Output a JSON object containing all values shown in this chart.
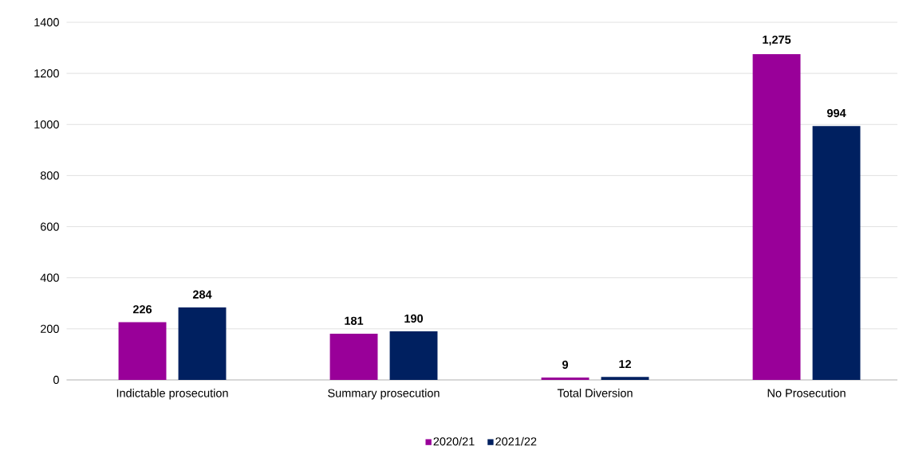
{
  "chart_data": {
    "type": "bar",
    "categories": [
      "Indictable prosecution",
      "Summary prosecution",
      "Total Diversion",
      "No Prosecution"
    ],
    "series": [
      {
        "name": "2020/21",
        "color": "#990099",
        "values": [
          226,
          181,
          9,
          1275
        ],
        "value_labels": [
          "226",
          "181",
          "9",
          "1,275"
        ]
      },
      {
        "name": "2021/22",
        "color": "#002060",
        "values": [
          284,
          190,
          12,
          994
        ],
        "value_labels": [
          "284",
          "190",
          "12",
          "994"
        ]
      }
    ],
    "ylim": [
      0,
      1400
    ],
    "yticks": [
      0,
      200,
      400,
      600,
      800,
      1000,
      1200,
      1400
    ],
    "grid": "y",
    "legend": "bottom"
  }
}
